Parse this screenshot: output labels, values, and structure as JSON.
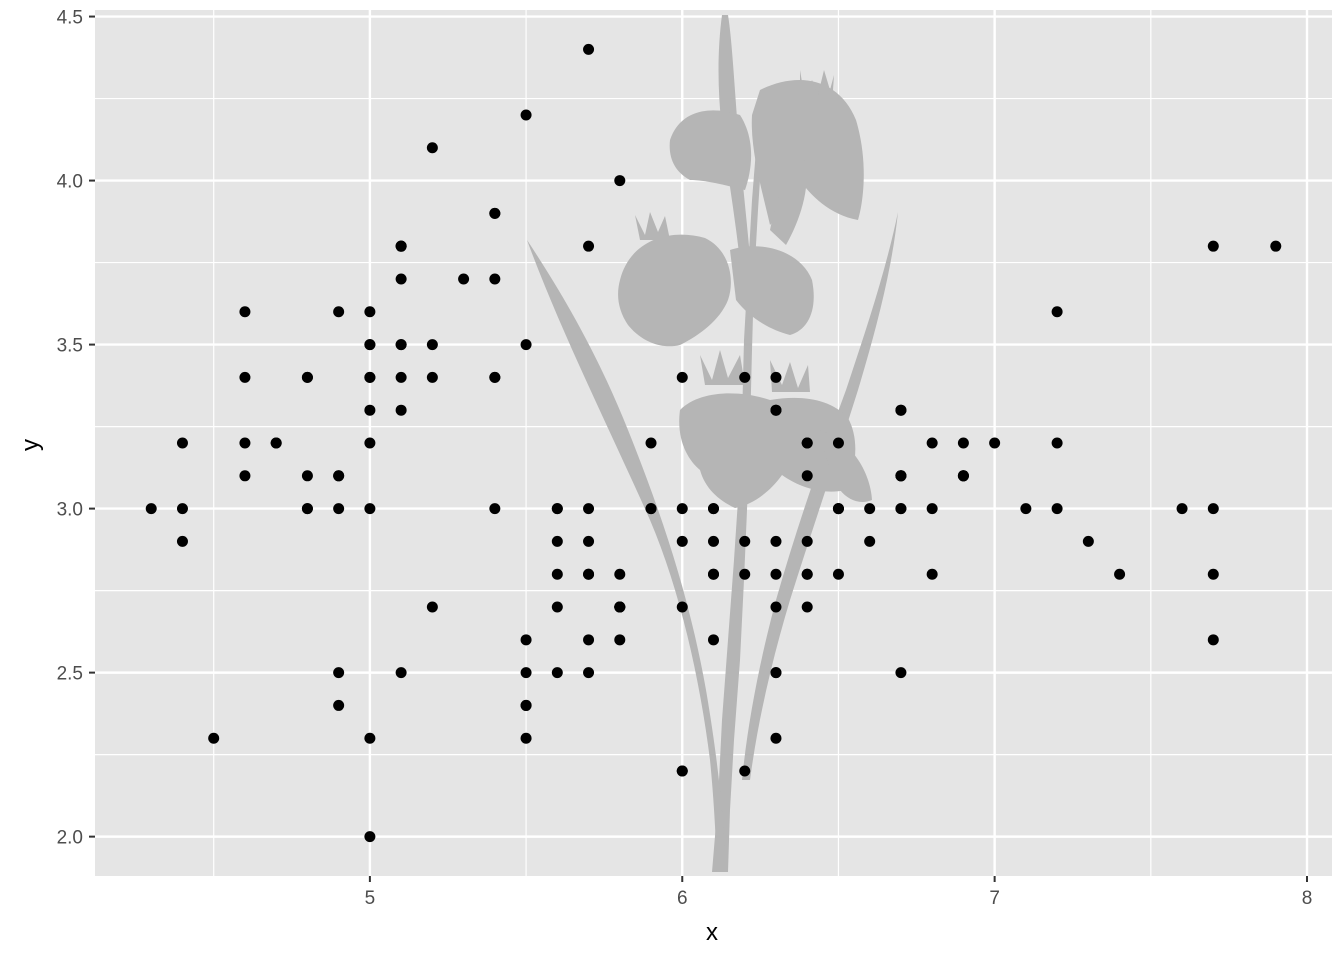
{
  "chart_data": {
    "type": "scatter",
    "title": "",
    "xlabel": "x",
    "ylabel": "y",
    "xlim": [
      4.12,
      8.08
    ],
    "ylim": [
      1.88,
      4.52
    ],
    "x_ticks": [
      5,
      6,
      7,
      8
    ],
    "x_tick_labels": [
      "5",
      "6",
      "7",
      "8"
    ],
    "y_ticks": [
      2.0,
      2.5,
      3.0,
      3.5,
      4.0,
      4.5
    ],
    "y_tick_labels": [
      "2.0",
      "2.5",
      "3.0",
      "3.5",
      "4.0",
      "4.5"
    ],
    "grid": true,
    "background_image": "iris-flower-silhouette",
    "colors": {
      "panel": "#e5e5e5",
      "grid": "#ffffff",
      "point": "#000000",
      "silhouette": "#b5b5b5"
    },
    "points": [
      [
        5.1,
        3.5
      ],
      [
        4.9,
        3.0
      ],
      [
        4.7,
        3.2
      ],
      [
        4.6,
        3.1
      ],
      [
        5.0,
        3.6
      ],
      [
        5.4,
        3.9
      ],
      [
        4.6,
        3.4
      ],
      [
        5.0,
        3.4
      ],
      [
        4.4,
        2.9
      ],
      [
        4.9,
        3.1
      ],
      [
        5.4,
        3.7
      ],
      [
        4.8,
        3.4
      ],
      [
        4.8,
        3.0
      ],
      [
        4.3,
        3.0
      ],
      [
        5.8,
        4.0
      ],
      [
        5.7,
        4.4
      ],
      [
        5.4,
        3.9
      ],
      [
        5.1,
        3.5
      ],
      [
        5.7,
        3.8
      ],
      [
        5.1,
        3.8
      ],
      [
        5.4,
        3.4
      ],
      [
        5.1,
        3.7
      ],
      [
        4.6,
        3.6
      ],
      [
        5.1,
        3.3
      ],
      [
        4.8,
        3.4
      ],
      [
        5.0,
        3.0
      ],
      [
        5.0,
        3.4
      ],
      [
        5.2,
        3.5
      ],
      [
        5.2,
        3.4
      ],
      [
        4.7,
        3.2
      ],
      [
        4.8,
        3.1
      ],
      [
        5.4,
        3.4
      ],
      [
        5.2,
        4.1
      ],
      [
        5.5,
        4.2
      ],
      [
        4.9,
        3.1
      ],
      [
        5.0,
        3.2
      ],
      [
        5.5,
        3.5
      ],
      [
        4.9,
        3.6
      ],
      [
        4.4,
        3.0
      ],
      [
        5.1,
        3.4
      ],
      [
        5.0,
        3.5
      ],
      [
        4.5,
        2.3
      ],
      [
        4.4,
        3.2
      ],
      [
        5.0,
        3.5
      ],
      [
        5.1,
        3.8
      ],
      [
        4.8,
        3.0
      ],
      [
        5.1,
        3.8
      ],
      [
        4.6,
        3.2
      ],
      [
        5.3,
        3.7
      ],
      [
        5.0,
        3.3
      ],
      [
        7.0,
        3.2
      ],
      [
        6.4,
        3.2
      ],
      [
        6.9,
        3.1
      ],
      [
        5.5,
        2.3
      ],
      [
        6.5,
        2.8
      ],
      [
        5.7,
        2.8
      ],
      [
        6.3,
        3.3
      ],
      [
        4.9,
        2.4
      ],
      [
        6.6,
        2.9
      ],
      [
        5.2,
        2.7
      ],
      [
        5.0,
        2.0
      ],
      [
        5.9,
        3.0
      ],
      [
        6.0,
        2.2
      ],
      [
        6.1,
        2.9
      ],
      [
        5.6,
        2.9
      ],
      [
        6.7,
        3.1
      ],
      [
        5.6,
        3.0
      ],
      [
        5.8,
        2.7
      ],
      [
        6.2,
        2.2
      ],
      [
        5.6,
        2.5
      ],
      [
        5.9,
        3.2
      ],
      [
        6.1,
        2.8
      ],
      [
        6.3,
        2.5
      ],
      [
        6.1,
        2.8
      ],
      [
        6.4,
        2.9
      ],
      [
        6.6,
        3.0
      ],
      [
        6.8,
        2.8
      ],
      [
        6.7,
        3.0
      ],
      [
        6.0,
        2.9
      ],
      [
        5.7,
        2.6
      ],
      [
        5.5,
        2.4
      ],
      [
        5.5,
        2.4
      ],
      [
        5.8,
        2.7
      ],
      [
        6.0,
        2.7
      ],
      [
        5.4,
        3.0
      ],
      [
        6.0,
        3.4
      ],
      [
        6.7,
        3.1
      ],
      [
        6.3,
        2.3
      ],
      [
        5.6,
        3.0
      ],
      [
        5.5,
        2.5
      ],
      [
        5.5,
        2.6
      ],
      [
        6.1,
        3.0
      ],
      [
        5.8,
        2.6
      ],
      [
        5.0,
        2.3
      ],
      [
        5.6,
        2.7
      ],
      [
        5.7,
        3.0
      ],
      [
        5.7,
        2.9
      ],
      [
        6.2,
        2.9
      ],
      [
        5.1,
        2.5
      ],
      [
        5.7,
        2.8
      ],
      [
        6.3,
        3.3
      ],
      [
        5.8,
        2.7
      ],
      [
        7.1,
        3.0
      ],
      [
        6.3,
        2.9
      ],
      [
        6.5,
        3.0
      ],
      [
        7.6,
        3.0
      ],
      [
        4.9,
        2.5
      ],
      [
        7.3,
        2.9
      ],
      [
        6.7,
        2.5
      ],
      [
        7.2,
        3.6
      ],
      [
        6.5,
        3.2
      ],
      [
        6.4,
        2.7
      ],
      [
        6.8,
        3.0
      ],
      [
        5.7,
        2.5
      ],
      [
        5.8,
        2.8
      ],
      [
        6.4,
        3.2
      ],
      [
        6.5,
        3.0
      ],
      [
        7.7,
        3.8
      ],
      [
        7.7,
        2.6
      ],
      [
        6.0,
        2.2
      ],
      [
        6.9,
        3.2
      ],
      [
        5.6,
        2.8
      ],
      [
        7.7,
        2.8
      ],
      [
        6.3,
        2.7
      ],
      [
        6.7,
        3.3
      ],
      [
        7.2,
        3.2
      ],
      [
        6.2,
        2.8
      ],
      [
        6.1,
        3.0
      ],
      [
        6.4,
        2.8
      ],
      [
        7.2,
        3.0
      ],
      [
        7.4,
        2.8
      ],
      [
        7.9,
        3.8
      ],
      [
        6.4,
        2.8
      ],
      [
        6.3,
        2.8
      ],
      [
        6.1,
        2.6
      ],
      [
        7.7,
        3.0
      ],
      [
        6.3,
        3.4
      ],
      [
        6.4,
        3.1
      ],
      [
        6.0,
        3.0
      ],
      [
        6.9,
        3.1
      ],
      [
        6.7,
        3.1
      ],
      [
        6.9,
        3.1
      ],
      [
        5.8,
        2.7
      ],
      [
        6.8,
        3.2
      ],
      [
        6.7,
        3.3
      ],
      [
        6.7,
        3.0
      ],
      [
        6.3,
        2.5
      ],
      [
        6.5,
        3.0
      ],
      [
        6.2,
        3.4
      ],
      [
        5.9,
        3.0
      ]
    ]
  }
}
